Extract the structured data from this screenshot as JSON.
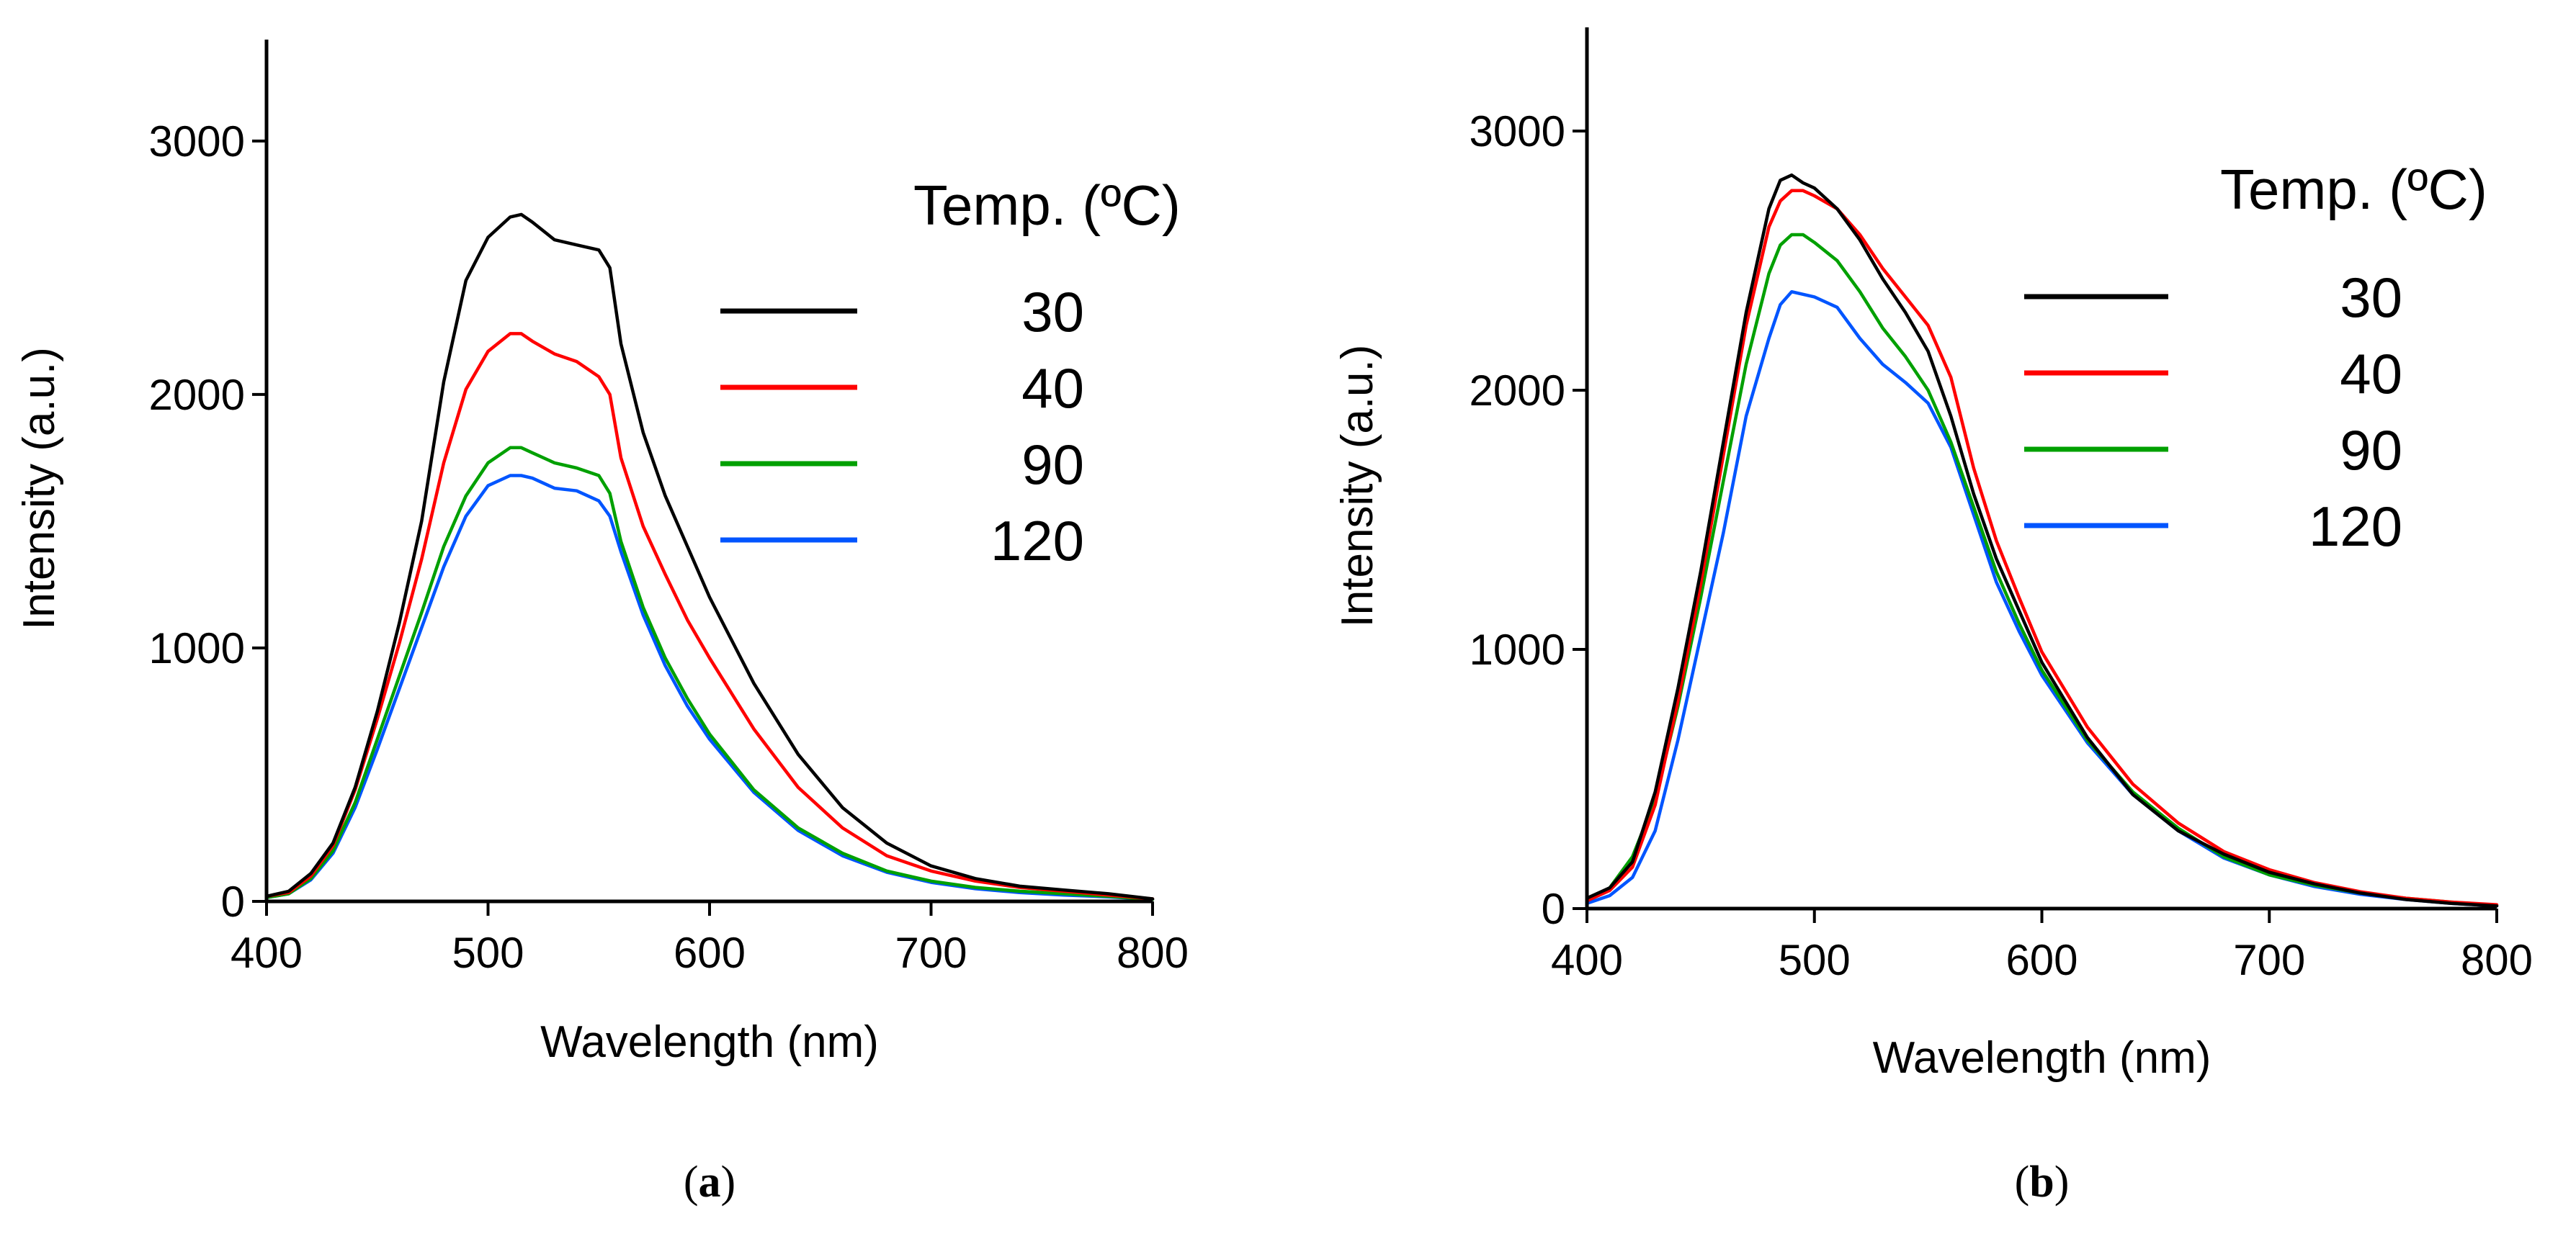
{
  "colors": {
    "30": "#000000",
    "40": "#ff0000",
    "90": "#00a000",
    "120": "#0055ff"
  },
  "chart_data": [
    {
      "type": "line",
      "panel_label": [
        "(",
        "a",
        ")"
      ],
      "xlabel": "Wavelength (nm)",
      "ylabel": "Intensity (a.u.)",
      "xlim": [
        400,
        800
      ],
      "ylim": [
        0,
        3400
      ],
      "x_ticks": [
        400,
        500,
        600,
        700,
        800
      ],
      "y_ticks": [
        0,
        1000,
        2000,
        3000
      ],
      "legend_title": "Temp. (ºC)",
      "legend_position": "right",
      "x": [
        400,
        410,
        420,
        430,
        440,
        450,
        460,
        470,
        480,
        490,
        500,
        510,
        515,
        520,
        530,
        540,
        550,
        555,
        560,
        570,
        580,
        590,
        600,
        620,
        640,
        660,
        680,
        700,
        720,
        740,
        760,
        780,
        800
      ],
      "series": [
        {
          "name": "30",
          "color_key": "30",
          "values": [
            20,
            40,
            110,
            230,
            450,
            750,
            1100,
            1500,
            2050,
            2450,
            2620,
            2700,
            2710,
            2680,
            2610,
            2590,
            2570,
            2500,
            2200,
            1850,
            1600,
            1400,
            1200,
            860,
            580,
            370,
            230,
            140,
            90,
            60,
            45,
            30,
            10
          ]
        },
        {
          "name": "40",
          "color_key": "40",
          "values": [
            20,
            35,
            100,
            220,
            440,
            720,
            1020,
            1350,
            1730,
            2020,
            2170,
            2240,
            2240,
            2210,
            2160,
            2130,
            2070,
            2000,
            1750,
            1480,
            1290,
            1110,
            960,
            680,
            450,
            290,
            180,
            120,
            80,
            55,
            40,
            25,
            10
          ]
        },
        {
          "name": "90",
          "color_key": "90",
          "values": [
            15,
            30,
            90,
            200,
            390,
            640,
            890,
            1140,
            1400,
            1600,
            1730,
            1790,
            1790,
            1770,
            1730,
            1710,
            1680,
            1610,
            1420,
            1160,
            960,
            800,
            660,
            440,
            290,
            190,
            120,
            80,
            55,
            40,
            30,
            20,
            8
          ]
        },
        {
          "name": "120",
          "color_key": "120",
          "values": [
            15,
            30,
            85,
            190,
            370,
            600,
            840,
            1080,
            1320,
            1520,
            1640,
            1680,
            1680,
            1670,
            1630,
            1620,
            1580,
            1520,
            1380,
            1130,
            930,
            770,
            640,
            430,
            280,
            180,
            115,
            75,
            50,
            35,
            25,
            18,
            8
          ]
        }
      ]
    },
    {
      "type": "line",
      "panel_label": [
        "(",
        "b",
        ")"
      ],
      "xlabel": "Wavelength (nm)",
      "ylabel": "Intensity (a.u.)",
      "xlim": [
        400,
        800
      ],
      "ylim": [
        0,
        3400
      ],
      "x_ticks": [
        400,
        500,
        600,
        700,
        800
      ],
      "y_ticks": [
        0,
        1000,
        2000,
        3000
      ],
      "legend_title": "Temp. (ºC)",
      "legend_position": "right",
      "x": [
        400,
        410,
        420,
        430,
        440,
        450,
        460,
        470,
        480,
        485,
        490,
        495,
        500,
        510,
        520,
        530,
        540,
        550,
        560,
        570,
        580,
        590,
        600,
        620,
        640,
        660,
        680,
        700,
        720,
        740,
        760,
        780,
        800
      ],
      "series": [
        {
          "name": "30",
          "color_key": "30",
          "values": [
            40,
            80,
            180,
            450,
            850,
            1300,
            1800,
            2300,
            2700,
            2810,
            2830,
            2800,
            2780,
            2700,
            2580,
            2430,
            2300,
            2150,
            1900,
            1600,
            1350,
            1150,
            950,
            660,
            440,
            300,
            210,
            140,
            95,
            60,
            35,
            20,
            10
          ]
        },
        {
          "name": "40",
          "color_key": "40",
          "values": [
            30,
            70,
            160,
            400,
            800,
            1250,
            1750,
            2250,
            2630,
            2730,
            2770,
            2770,
            2750,
            2700,
            2600,
            2470,
            2360,
            2250,
            2050,
            1700,
            1420,
            1200,
            990,
            700,
            480,
            330,
            220,
            150,
            100,
            65,
            40,
            25,
            15
          ]
        },
        {
          "name": "90",
          "color_key": "90",
          "values": [
            30,
            80,
            200,
            420,
            780,
            1200,
            1650,
            2100,
            2450,
            2560,
            2600,
            2600,
            2570,
            2500,
            2380,
            2240,
            2130,
            2000,
            1800,
            1550,
            1300,
            1100,
            920,
            650,
            450,
            310,
            200,
            130,
            90,
            60,
            40,
            25,
            12
          ]
        },
        {
          "name": "120",
          "color_key": "120",
          "values": [
            20,
            50,
            120,
            300,
            650,
            1050,
            1450,
            1900,
            2200,
            2330,
            2380,
            2370,
            2360,
            2320,
            2200,
            2100,
            2030,
            1950,
            1780,
            1520,
            1260,
            1070,
            900,
            640,
            440,
            300,
            195,
            130,
            85,
            55,
            35,
            20,
            10
          ]
        }
      ]
    }
  ]
}
